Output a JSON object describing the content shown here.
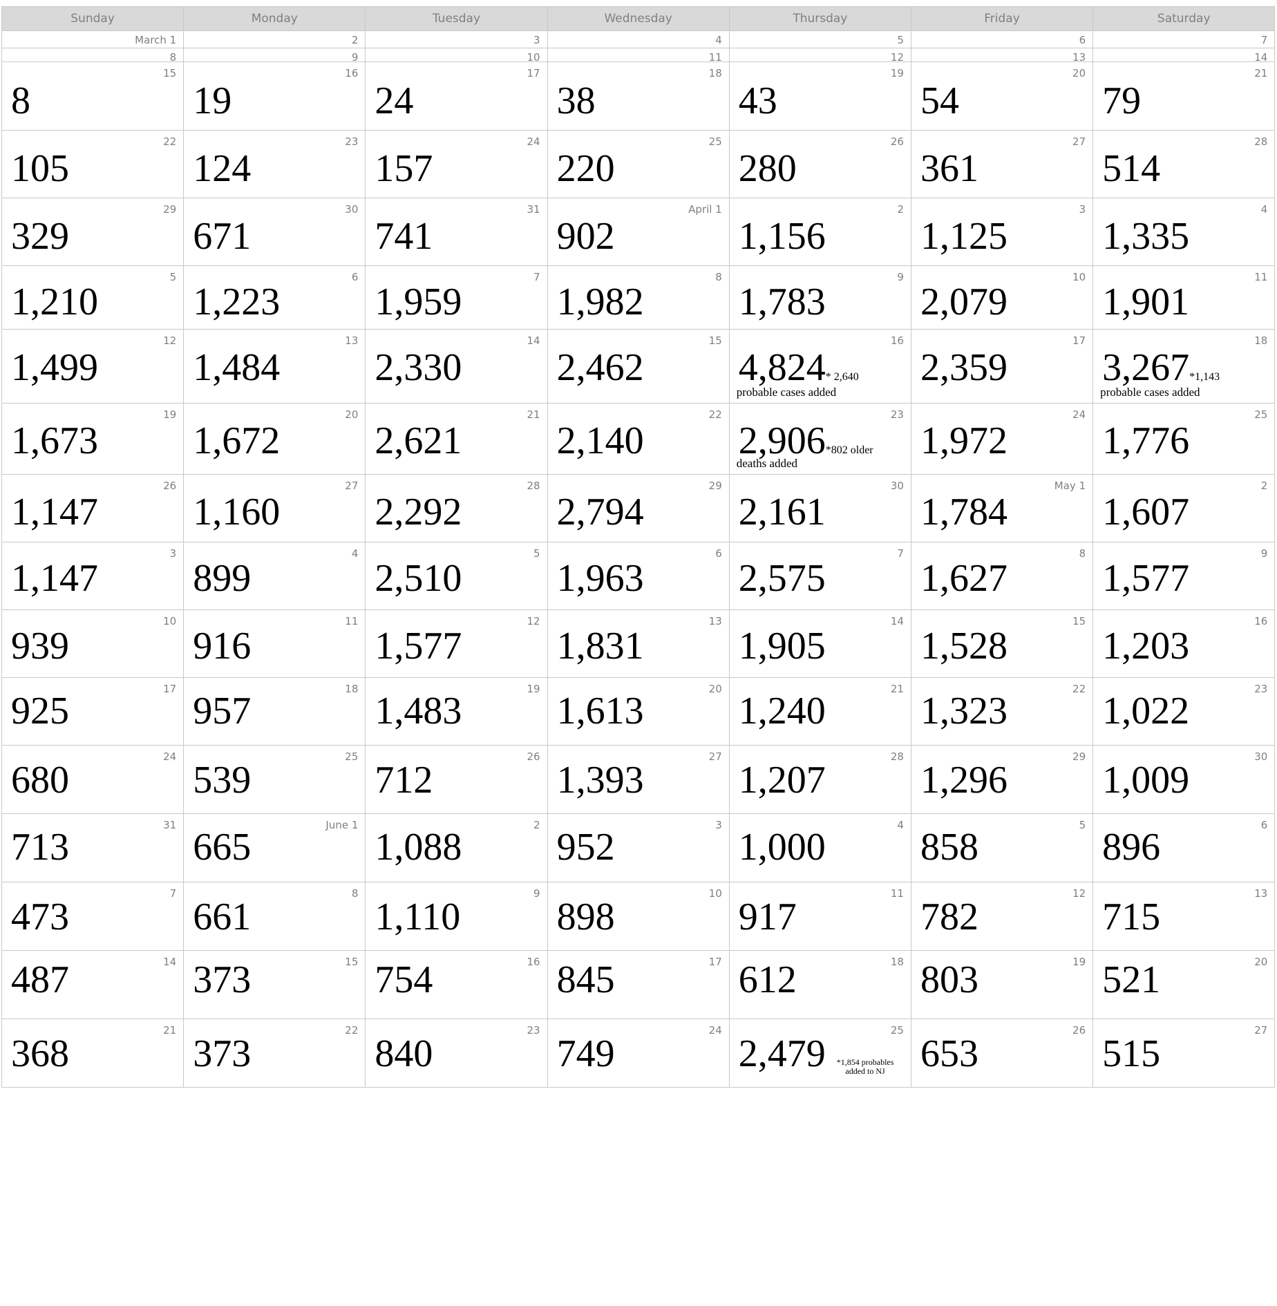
{
  "weekdays": [
    "Sunday",
    "Monday",
    "Tuesday",
    "Wednesday",
    "Thursday",
    "Friday",
    "Saturday"
  ],
  "weeks": [
    [
      {
        "date": "March 1"
      },
      {
        "date": "2"
      },
      {
        "date": "3"
      },
      {
        "date": "4"
      },
      {
        "date": "5"
      },
      {
        "date": "6"
      },
      {
        "date": "7"
      }
    ],
    [
      {
        "date": "8"
      },
      {
        "date": "9"
      },
      {
        "date": "10"
      },
      {
        "date": "11"
      },
      {
        "date": "12"
      },
      {
        "date": "13"
      },
      {
        "date": "14"
      }
    ],
    [
      {
        "date": "15",
        "value": "8"
      },
      {
        "date": "16",
        "value": "19"
      },
      {
        "date": "17",
        "value": "24"
      },
      {
        "date": "18",
        "value": "38"
      },
      {
        "date": "19",
        "value": "43"
      },
      {
        "date": "20",
        "value": "54"
      },
      {
        "date": "21",
        "value": "79"
      }
    ],
    [
      {
        "date": "22",
        "value": "105"
      },
      {
        "date": "23",
        "value": "124"
      },
      {
        "date": "24",
        "value": "157"
      },
      {
        "date": "25",
        "value": "220"
      },
      {
        "date": "26",
        "value": "280"
      },
      {
        "date": "27",
        "value": "361"
      },
      {
        "date": "28",
        "value": "514"
      }
    ],
    [
      {
        "date": "29",
        "value": "329"
      },
      {
        "date": "30",
        "value": "671"
      },
      {
        "date": "31",
        "value": "741"
      },
      {
        "date": "April 1",
        "value": "902"
      },
      {
        "date": "2",
        "value": "1,156"
      },
      {
        "date": "3",
        "value": "1,125"
      },
      {
        "date": "4",
        "value": "1,335"
      }
    ],
    [
      {
        "date": "5",
        "value": "1,210"
      },
      {
        "date": "6",
        "value": "1,223"
      },
      {
        "date": "7",
        "value": "1,959"
      },
      {
        "date": "8",
        "value": "1,982"
      },
      {
        "date": "9",
        "value": "1,783"
      },
      {
        "date": "10",
        "value": "2,079"
      },
      {
        "date": "11",
        "value": "1,901"
      }
    ],
    [
      {
        "date": "12",
        "value": "1,499"
      },
      {
        "date": "13",
        "value": "1,484"
      },
      {
        "date": "14",
        "value": "2,330"
      },
      {
        "date": "15",
        "value": "2,462"
      },
      {
        "date": "16",
        "value": "4,824",
        "note_inline": "* 2,640",
        "note_line": "probable cases added"
      },
      {
        "date": "17",
        "value": "2,359"
      },
      {
        "date": "18",
        "value": "3,267",
        "note_inline": "*1,143",
        "note_line": "probable cases added"
      }
    ],
    [
      {
        "date": "19",
        "value": "1,673"
      },
      {
        "date": "20",
        "value": "1,672"
      },
      {
        "date": "21",
        "value": "2,621"
      },
      {
        "date": "22",
        "value": "2,140"
      },
      {
        "date": "23",
        "value": "2,906",
        "note_inline": "*802 older",
        "note_line": "deaths added"
      },
      {
        "date": "24",
        "value": "1,972"
      },
      {
        "date": "25",
        "value": "1,776"
      }
    ],
    [
      {
        "date": "26",
        "value": "1,147"
      },
      {
        "date": "27",
        "value": "1,160"
      },
      {
        "date": "28",
        "value": "2,292"
      },
      {
        "date": "29",
        "value": "2,794"
      },
      {
        "date": "30",
        "value": "2,161"
      },
      {
        "date": "May 1",
        "value": "1,784"
      },
      {
        "date": "2",
        "value": "1,607"
      }
    ],
    [
      {
        "date": "3",
        "value": "1,147"
      },
      {
        "date": "4",
        "value": "899"
      },
      {
        "date": "5",
        "value": "2,510"
      },
      {
        "date": "6",
        "value": "1,963"
      },
      {
        "date": "7",
        "value": "2,575"
      },
      {
        "date": "8",
        "value": "1,627"
      },
      {
        "date": "9",
        "value": "1,577"
      }
    ],
    [
      {
        "date": "10",
        "value": "939"
      },
      {
        "date": "11",
        "value": "916"
      },
      {
        "date": "12",
        "value": "1,577"
      },
      {
        "date": "13",
        "value": "1,831"
      },
      {
        "date": "14",
        "value": "1,905"
      },
      {
        "date": "15",
        "value": "1,528"
      },
      {
        "date": "16",
        "value": "1,203"
      }
    ],
    [
      {
        "date": "17",
        "value": "925"
      },
      {
        "date": "18",
        "value": "957"
      },
      {
        "date": "19",
        "value": "1,483"
      },
      {
        "date": "20",
        "value": "1,613"
      },
      {
        "date": "21",
        "value": "1,240"
      },
      {
        "date": "22",
        "value": "1,323"
      },
      {
        "date": "23",
        "value": "1,022"
      }
    ],
    [
      {
        "date": "24",
        "value": "680"
      },
      {
        "date": "25",
        "value": "539"
      },
      {
        "date": "26",
        "value": "712"
      },
      {
        "date": "27",
        "value": "1,393"
      },
      {
        "date": "28",
        "value": "1,207"
      },
      {
        "date": "29",
        "value": "1,296"
      },
      {
        "date": "30",
        "value": "1,009"
      }
    ],
    [
      {
        "date": "31",
        "value": "713"
      },
      {
        "date": "June 1",
        "value": "665"
      },
      {
        "date": "2",
        "value": "1,088"
      },
      {
        "date": "3",
        "value": "952"
      },
      {
        "date": "4",
        "value": "1,000"
      },
      {
        "date": "5",
        "value": "858"
      },
      {
        "date": "6",
        "value": "896"
      }
    ],
    [
      {
        "date": "7",
        "value": "473"
      },
      {
        "date": "8",
        "value": "661"
      },
      {
        "date": "9",
        "value": "1,110"
      },
      {
        "date": "10",
        "value": "898"
      },
      {
        "date": "11",
        "value": "917"
      },
      {
        "date": "12",
        "value": "782"
      },
      {
        "date": "13",
        "value": "715"
      }
    ],
    [
      {
        "date": "14",
        "value": "487"
      },
      {
        "date": "15",
        "value": "373"
      },
      {
        "date": "16",
        "value": "754"
      },
      {
        "date": "17",
        "value": "845"
      },
      {
        "date": "18",
        "value": "612"
      },
      {
        "date": "19",
        "value": "803"
      },
      {
        "date": "20",
        "value": "521"
      }
    ],
    [
      {
        "date": "21",
        "value": "368"
      },
      {
        "date": "22",
        "value": "373"
      },
      {
        "date": "23",
        "value": "840"
      },
      {
        "date": "24",
        "value": "749"
      },
      {
        "date": "25",
        "value": "2,479",
        "note_small": [
          "*1,854 probables",
          "added to NJ"
        ]
      },
      {
        "date": "26",
        "value": "653"
      },
      {
        "date": "27",
        "value": "515"
      }
    ]
  ]
}
